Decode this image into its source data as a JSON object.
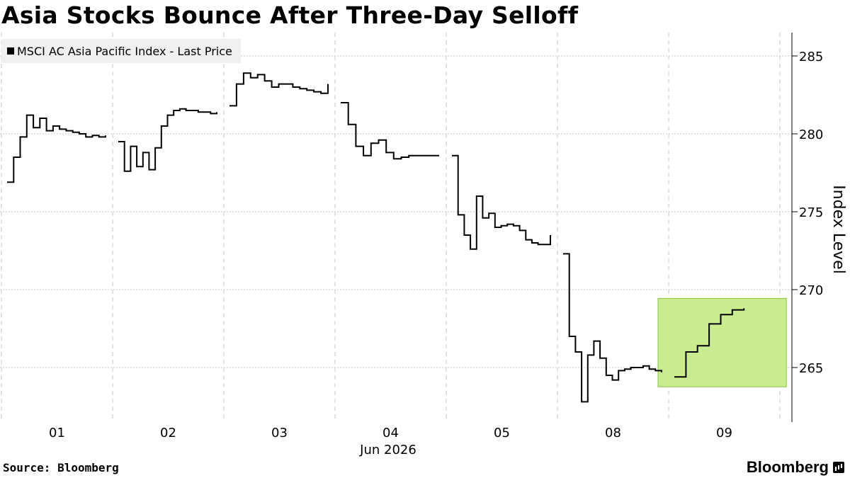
{
  "header": {
    "title": "Asia Stocks Bounce After Three-Day Selloff"
  },
  "footer": {
    "source": "Source: Bloomberg",
    "brand": "Bloomberg"
  },
  "chart_data": {
    "type": "line",
    "title": "Asia Stocks Bounce After Three-Day Selloff",
    "xlabel": "Jun 2026",
    "ylabel": "Index Level",
    "ylim": [
      261.5,
      286.5
    ],
    "yticks": [
      265,
      270,
      275,
      280,
      285
    ],
    "ytick_labels": [
      "265",
      "270",
      "275",
      "280",
      "285"
    ],
    "days": [
      "01",
      "02",
      "03",
      "04",
      "05",
      "08",
      "09"
    ],
    "grid": true,
    "legend_position": "top-left",
    "series": [
      {
        "name": "MSCI AC Asia Pacific Index - Last Price",
        "color": "#000000",
        "segments": [
          {
            "day": "01",
            "values": [
              276.9,
              278.5,
              279.8,
              281.2,
              280.4,
              281.0,
              280.2,
              280.5,
              280.3,
              280.2,
              280.1,
              280.0,
              279.8,
              279.9,
              279.8,
              279.9
            ]
          },
          {
            "day": "02",
            "values": [
              279.5,
              277.6,
              279.2,
              277.9,
              278.8,
              277.7,
              279.1,
              280.5,
              281.2,
              281.5,
              281.6,
              281.5,
              281.5,
              281.4,
              281.4,
              281.3,
              281.4
            ]
          },
          {
            "day": "03",
            "values": [
              281.8,
              283.2,
              283.9,
              283.6,
              283.8,
              283.4,
              283.0,
              283.2,
              283.2,
              283.0,
              282.9,
              282.8,
              282.7,
              282.6,
              283.2
            ]
          },
          {
            "day": "04",
            "values": [
              282.0,
              280.6,
              279.2,
              278.6,
              279.4,
              279.6,
              278.8,
              278.4,
              278.5,
              278.6,
              278.6,
              278.6,
              278.6,
              278.6
            ]
          },
          {
            "day": "05",
            "values": [
              278.6,
              274.8,
              273.5,
              272.6,
              276.0,
              274.6,
              274.9,
              274.0,
              274.1,
              274.2,
              274.1,
              273.8,
              273.2,
              273.0,
              272.9,
              272.9,
              273.5
            ]
          },
          {
            "day": "08",
            "values": [
              272.3,
              267.0,
              266.0,
              262.8,
              265.8,
              266.7,
              265.6,
              264.5,
              264.2,
              264.8,
              264.9,
              265.0,
              265.0,
              265.1,
              264.9,
              264.8,
              264.7
            ]
          },
          {
            "day": "09",
            "values": [
              264.4,
              266.0,
              266.4,
              267.8,
              268.4,
              268.7,
              268.8
            ]
          }
        ]
      }
    ],
    "highlight": {
      "day": "09",
      "color": "#c9ec8f",
      "border": "#8cc43a"
    }
  }
}
